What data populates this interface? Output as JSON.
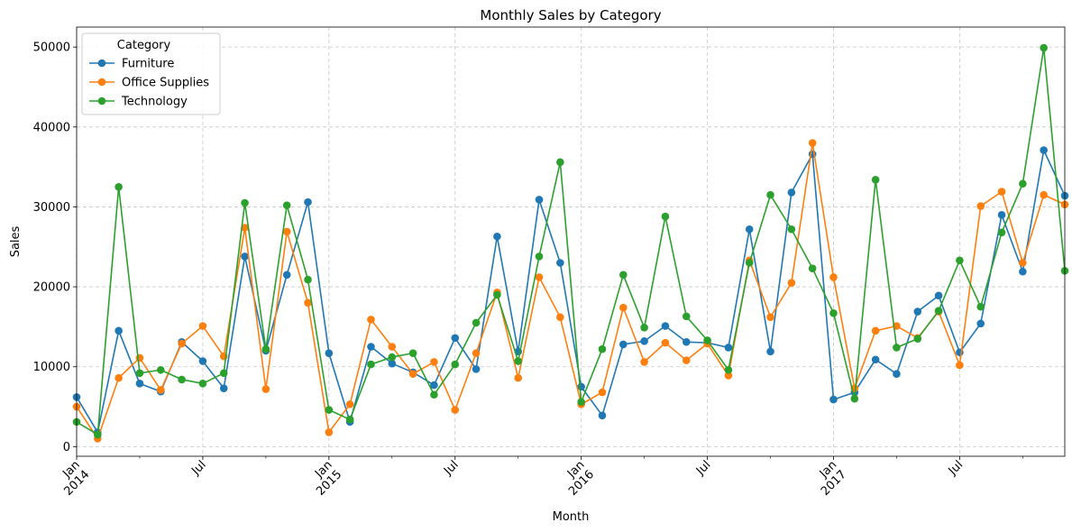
{
  "chart_data": {
    "type": "line",
    "title": "Monthly Sales by Category",
    "xlabel": "Month",
    "ylabel": "Sales",
    "ylim": [
      -1200,
      52500
    ],
    "yticks": [
      0,
      10000,
      20000,
      30000,
      40000,
      50000
    ],
    "x_major_ticks": [
      {
        "index": 0,
        "month": "Jan",
        "year": "2014"
      },
      {
        "index": 6,
        "month": "Jul",
        "year": ""
      },
      {
        "index": 12,
        "month": "Jan",
        "year": "2015"
      },
      {
        "index": 18,
        "month": "Jul",
        "year": ""
      },
      {
        "index": 24,
        "month": "Jan",
        "year": "2016"
      },
      {
        "index": 30,
        "month": "Jul",
        "year": ""
      },
      {
        "index": 36,
        "month": "Jan",
        "year": "2017"
      },
      {
        "index": 42,
        "month": "Jul",
        "year": ""
      }
    ],
    "start_month": "2014-01",
    "n_months": 48,
    "grid": true,
    "legend": {
      "title": "Category",
      "placement": "top-left"
    },
    "series": [
      {
        "name": "Furniture",
        "color": "#1f77b4",
        "values": [
          6200,
          1800,
          14500,
          7900,
          6900,
          13100,
          10700,
          7300,
          23800,
          12000,
          21500,
          30600,
          11700,
          3100,
          12500,
          10400,
          9300,
          7700,
          13600,
          9700,
          26300,
          11900,
          30900,
          23000,
          7500,
          3900,
          12800,
          13200,
          15100,
          13100,
          13000,
          12400,
          27200,
          11900,
          31800,
          36600,
          5900,
          6800,
          10900,
          9100,
          16900,
          18900,
          11800,
          15400,
          29000,
          21900,
          37100,
          31400
        ]
      },
      {
        "name": "Office Supplies",
        "color": "#ff7f0e",
        "values": [
          5000,
          1000,
          8600,
          11100,
          7100,
          12900,
          15100,
          11300,
          27400,
          7200,
          26900,
          18000,
          1800,
          5300,
          15900,
          12500,
          9100,
          10600,
          4600,
          11700,
          19300,
          8600,
          21200,
          16200,
          5300,
          6800,
          17400,
          10600,
          13000,
          10800,
          12900,
          8900,
          23300,
          16200,
          20500,
          38000,
          21200,
          7300,
          14500,
          15100,
          13600,
          16900,
          10200,
          30100,
          31900,
          23000,
          31500,
          30300
        ]
      },
      {
        "name": "Technology",
        "color": "#2ca02c",
        "values": [
          3100,
          1500,
          32500,
          9200,
          9600,
          8400,
          7900,
          9200,
          30500,
          12200,
          30200,
          20900,
          4600,
          3400,
          10300,
          11200,
          11700,
          6500,
          10300,
          15500,
          19000,
          10700,
          23800,
          35600,
          5600,
          12200,
          21500,
          14900,
          28800,
          16300,
          13300,
          9600,
          23000,
          31500,
          27200,
          22300,
          16700,
          6000,
          33400,
          12400,
          13500,
          17000,
          23300,
          17500,
          26800,
          32900,
          49900,
          22000
        ]
      }
    ]
  }
}
